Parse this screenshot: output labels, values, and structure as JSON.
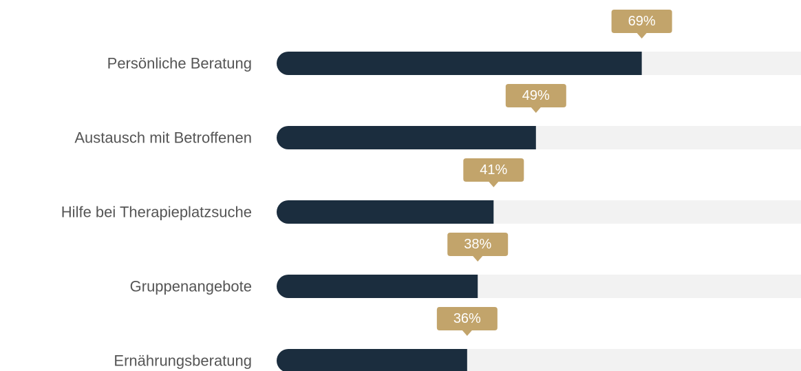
{
  "chart_data": {
    "type": "bar",
    "orientation": "horizontal",
    "categories": [
      "Persönliche Beratung",
      "Austausch mit Betroffenen",
      "Hilfe bei Therapieplatzsuche",
      "Gruppenangebote",
      "Ernährungsberatung"
    ],
    "values": [
      69,
      49,
      41,
      38,
      36
    ],
    "value_labels": [
      "69%",
      "49%",
      "41%",
      "38%",
      "36%"
    ],
    "color": "#1b2d3e",
    "track_color": "#f2f2f2",
    "label_color": "#c2a46b",
    "xlim": [
      0,
      100
    ]
  }
}
